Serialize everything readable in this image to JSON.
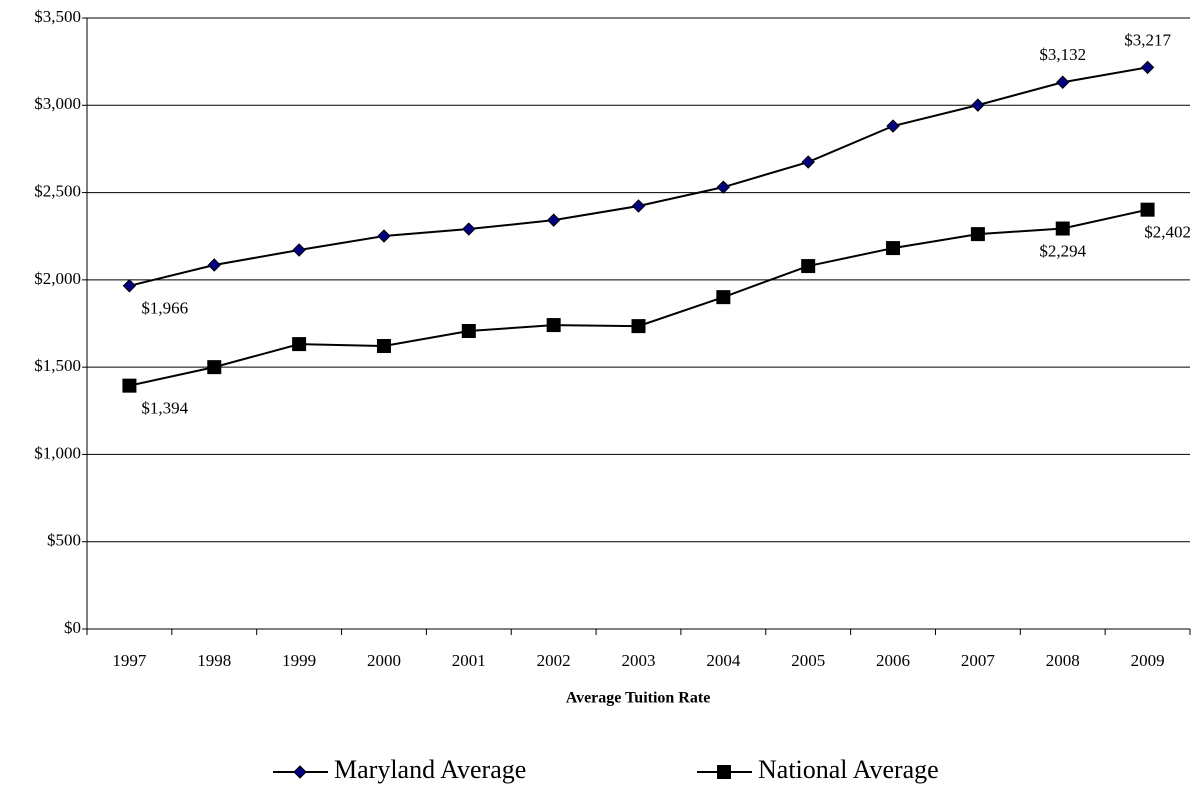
{
  "chart_data": {
    "type": "line",
    "x_label": "Average Tuition Rate",
    "categories": [
      "1997",
      "1998",
      "1999",
      "2000",
      "2001",
      "2002",
      "2003",
      "2004",
      "2005",
      "2006",
      "2007",
      "2008",
      "2009"
    ],
    "series": [
      {
        "name": "Maryland Average",
        "color": "#000080",
        "marker": "diamond",
        "values": [
          1966,
          2085,
          2171,
          2251,
          2291,
          2342,
          2423,
          2531,
          2675,
          2881,
          3001,
          3132,
          3217
        ],
        "value_labels": [
          "$1,966",
          null,
          null,
          null,
          null,
          null,
          null,
          null,
          null,
          null,
          null,
          "$3,132",
          "$3,217"
        ]
      },
      {
        "name": "National Average",
        "color": "#000000",
        "marker": "square",
        "values": [
          1394,
          1500,
          1632,
          1621,
          1707,
          1741,
          1735,
          1901,
          2079,
          2182,
          2262,
          2294,
          2402
        ],
        "value_labels": [
          "$1,394",
          null,
          null,
          null,
          null,
          null,
          null,
          null,
          null,
          null,
          null,
          "$2,294",
          "$2,402"
        ]
      }
    ],
    "ylim": [
      0,
      3500
    ],
    "yticks": [
      {
        "value": 0,
        "label": "$0"
      },
      {
        "value": 500,
        "label": "$500"
      },
      {
        "value": 1000,
        "label": "$1,000"
      },
      {
        "value": 1500,
        "label": "$1,500"
      },
      {
        "value": 2000,
        "label": "$2,000"
      },
      {
        "value": 2500,
        "label": "$2,500"
      },
      {
        "value": 3000,
        "label": "$3,000"
      },
      {
        "value": 3500,
        "label": "$3,500"
      }
    ],
    "grid": true,
    "legend": "bottom"
  }
}
